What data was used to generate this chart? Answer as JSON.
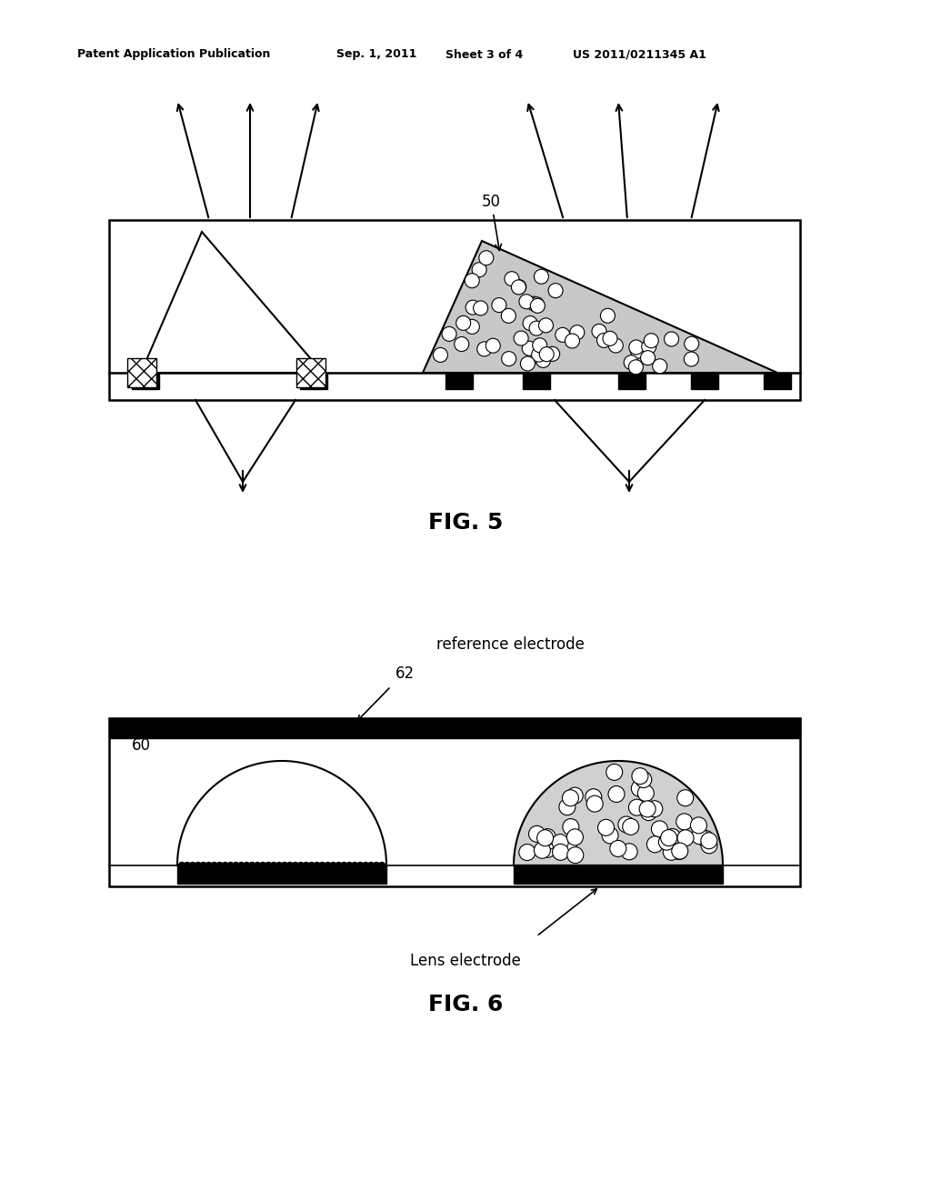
{
  "bg_color": "#ffffff",
  "header_text": "Patent Application Publication",
  "header_date": "Sep. 1, 2011",
  "header_sheet": "Sheet 3 of 4",
  "header_patent": "US 2011/0211345 A1",
  "fig5_label": "FIG. 5",
  "fig6_label": "FIG. 6",
  "label_50": "50",
  "label_60": "60",
  "label_62": "62",
  "label_ref_electrode": "reference electrode",
  "label_lens_electrode": "Lens electrode"
}
